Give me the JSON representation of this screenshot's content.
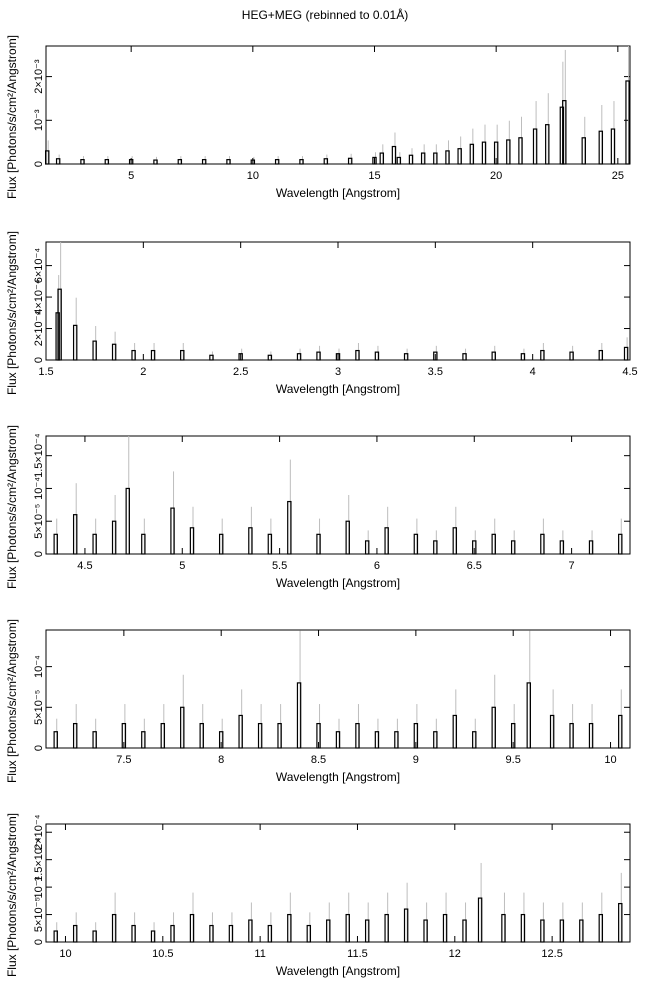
{
  "title": "HEG+MEG (rebinned to 0.01Å)",
  "chart_data": [
    {
      "type": "line",
      "xlabel": "Wavelength [Angstrom]",
      "ylabel": "Flux [Photons/s/cm²/Angstrom]",
      "xlim": [
        1.5,
        25.5
      ],
      "ylim": [
        0,
        0.0027
      ],
      "x_ticks": [
        5,
        10,
        15,
        20,
        25
      ],
      "y_ticks": [
        {
          "v": 0,
          "t": "0"
        },
        {
          "v": 0.001,
          "t": "10⁻³"
        },
        {
          "v": 0.002,
          "t": "2×10⁻³"
        }
      ],
      "series": [
        {
          "x": [
            1.55,
            2.0,
            3.0,
            4.0,
            5.0,
            6.0,
            7.0,
            8.0,
            9.0,
            10.0,
            11.0,
            12.0,
            13.0,
            14.0,
            15.0,
            15.3,
            15.8,
            16.0,
            16.5,
            17.0,
            17.5,
            18.0,
            18.5,
            19.0,
            19.5,
            20.0,
            20.5,
            21.0,
            21.6,
            22.1,
            22.7,
            22.8,
            23.6,
            24.3,
            24.8,
            25.4
          ],
          "y": [
            0.0003,
            0.00012,
            0.0001,
            0.0001,
            0.0001,
            9e-05,
            0.0001,
            0.0001,
            0.0001,
            9e-05,
            0.0001,
            0.0001,
            0.00012,
            0.00013,
            0.00015,
            0.00025,
            0.0004,
            0.00015,
            0.0002,
            0.00025,
            0.00025,
            0.0003,
            0.00035,
            0.00045,
            0.0005,
            0.0005,
            0.00055,
            0.0006,
            0.0008,
            0.0009,
            0.0013,
            0.00145,
            0.0006,
            0.00075,
            0.0008,
            0.0019
          ]
        }
      ]
    },
    {
      "type": "line",
      "xlabel": "Wavelength [Angstrom]",
      "ylabel": "Flux [Photons/s/cm²/Angstrom]",
      "xlim": [
        1.5,
        4.5
      ],
      "ylim": [
        0,
        0.00075
      ],
      "x_ticks": [
        1.5,
        2,
        2.5,
        3,
        3.5,
        4,
        4.5
      ],
      "y_ticks": [
        {
          "v": 0,
          "t": "0"
        },
        {
          "v": 0.0002,
          "t": "2×10⁻⁴"
        },
        {
          "v": 0.0004,
          "t": "4×10⁻⁴"
        },
        {
          "v": 0.0006,
          "t": "6×10⁻⁴"
        }
      ],
      "series": [
        {
          "x": [
            1.56,
            1.57,
            1.65,
            1.75,
            1.85,
            1.95,
            2.05,
            2.2,
            2.35,
            2.5,
            2.65,
            2.8,
            2.9,
            3.0,
            3.1,
            3.2,
            3.35,
            3.5,
            3.65,
            3.8,
            3.95,
            4.05,
            4.2,
            4.35,
            4.48
          ],
          "y": [
            0.0003,
            0.00045,
            0.00022,
            0.00012,
            0.0001,
            6e-05,
            6e-05,
            6e-05,
            3e-05,
            4e-05,
            3e-05,
            4e-05,
            5e-05,
            4e-05,
            6e-05,
            5e-05,
            4e-05,
            5e-05,
            4e-05,
            5e-05,
            4e-05,
            6e-05,
            5e-05,
            6e-05,
            8e-05
          ]
        }
      ]
    },
    {
      "type": "line",
      "xlabel": "Wavelength [Angstrom]",
      "ylabel": "Flux [Photons/s/cm²/Angstrom]",
      "xlim": [
        4.3,
        7.3
      ],
      "ylim": [
        0,
        0.00018
      ],
      "x_ticks": [
        4.5,
        5,
        5.5,
        6,
        6.5,
        7
      ],
      "y_ticks": [
        {
          "v": 0,
          "t": "0"
        },
        {
          "v": 5e-05,
          "t": "5×10⁻⁵"
        },
        {
          "v": 0.0001,
          "t": "10⁻⁴"
        },
        {
          "v": 0.00015,
          "t": "1.5×10⁻⁴"
        }
      ],
      "series": [
        {
          "x": [
            4.35,
            4.45,
            4.55,
            4.65,
            4.72,
            4.8,
            4.95,
            5.05,
            5.2,
            5.35,
            5.45,
            5.55,
            5.7,
            5.85,
            5.95,
            6.05,
            6.2,
            6.3,
            6.4,
            6.5,
            6.6,
            6.7,
            6.85,
            6.95,
            7.1,
            7.25
          ],
          "y": [
            3e-05,
            6e-05,
            3e-05,
            5e-05,
            0.0001,
            3e-05,
            7e-05,
            4e-05,
            3e-05,
            4e-05,
            3e-05,
            8e-05,
            3e-05,
            5e-05,
            2e-05,
            4e-05,
            3e-05,
            2e-05,
            4e-05,
            2e-05,
            3e-05,
            2e-05,
            3e-05,
            2e-05,
            2e-05,
            3e-05
          ]
        }
      ]
    },
    {
      "type": "line",
      "xlabel": "Wavelength [Angstrom]",
      "ylabel": "Flux [Photons/s/cm²/Angstrom]",
      "xlim": [
        7.1,
        10.1
      ],
      "ylim": [
        0,
        0.000145
      ],
      "x_ticks": [
        7.5,
        8,
        8.5,
        9,
        9.5,
        10
      ],
      "y_ticks": [
        {
          "v": 0,
          "t": "0"
        },
        {
          "v": 5e-05,
          "t": "5×10⁻⁵"
        },
        {
          "v": 0.0001,
          "t": "10⁻⁴"
        }
      ],
      "series": [
        {
          "x": [
            7.15,
            7.25,
            7.35,
            7.5,
            7.6,
            7.7,
            7.8,
            7.9,
            8.0,
            8.1,
            8.2,
            8.3,
            8.4,
            8.5,
            8.6,
            8.7,
            8.8,
            8.9,
            9.0,
            9.1,
            9.2,
            9.3,
            9.4,
            9.5,
            9.58,
            9.7,
            9.8,
            9.9,
            10.05
          ],
          "y": [
            2e-05,
            3e-05,
            2e-05,
            3e-05,
            2e-05,
            3e-05,
            5e-05,
            3e-05,
            2e-05,
            4e-05,
            3e-05,
            3e-05,
            8e-05,
            3e-05,
            2e-05,
            3e-05,
            2e-05,
            2e-05,
            3e-05,
            2e-05,
            4e-05,
            2e-05,
            5e-05,
            3e-05,
            8e-05,
            4e-05,
            3e-05,
            3e-05,
            4e-05
          ]
        }
      ]
    },
    {
      "type": "line",
      "xlabel": "Wavelength [Angstrom]",
      "ylabel": "Flux [Photons/s/cm²/Angstrom]",
      "xlim": [
        9.9,
        12.9
      ],
      "ylim": [
        0,
        0.000215
      ],
      "x_ticks": [
        10,
        10.5,
        11,
        11.5,
        12,
        12.5
      ],
      "y_ticks": [
        {
          "v": 0,
          "t": "0"
        },
        {
          "v": 5e-05,
          "t": "5×10⁻⁵"
        },
        {
          "v": 0.0001,
          "t": "10⁻⁴"
        },
        {
          "v": 0.00015,
          "t": "1.5×10⁻⁴"
        },
        {
          "v": 0.0002,
          "t": "2×10⁻⁴"
        }
      ],
      "series": [
        {
          "x": [
            9.95,
            10.05,
            10.15,
            10.25,
            10.35,
            10.45,
            10.55,
            10.65,
            10.75,
            10.85,
            10.95,
            11.05,
            11.15,
            11.25,
            11.35,
            11.45,
            11.55,
            11.65,
            11.75,
            11.85,
            11.95,
            12.05,
            12.13,
            12.25,
            12.35,
            12.45,
            12.55,
            12.65,
            12.75,
            12.85
          ],
          "y": [
            2e-05,
            3e-05,
            2e-05,
            5e-05,
            3e-05,
            2e-05,
            3e-05,
            5e-05,
            3e-05,
            3e-05,
            4e-05,
            3e-05,
            5e-05,
            3e-05,
            4e-05,
            5e-05,
            4e-05,
            5e-05,
            6e-05,
            4e-05,
            5e-05,
            4e-05,
            8e-05,
            5e-05,
            5e-05,
            4e-05,
            4e-05,
            4e-05,
            5e-05,
            7e-05
          ]
        }
      ]
    }
  ]
}
